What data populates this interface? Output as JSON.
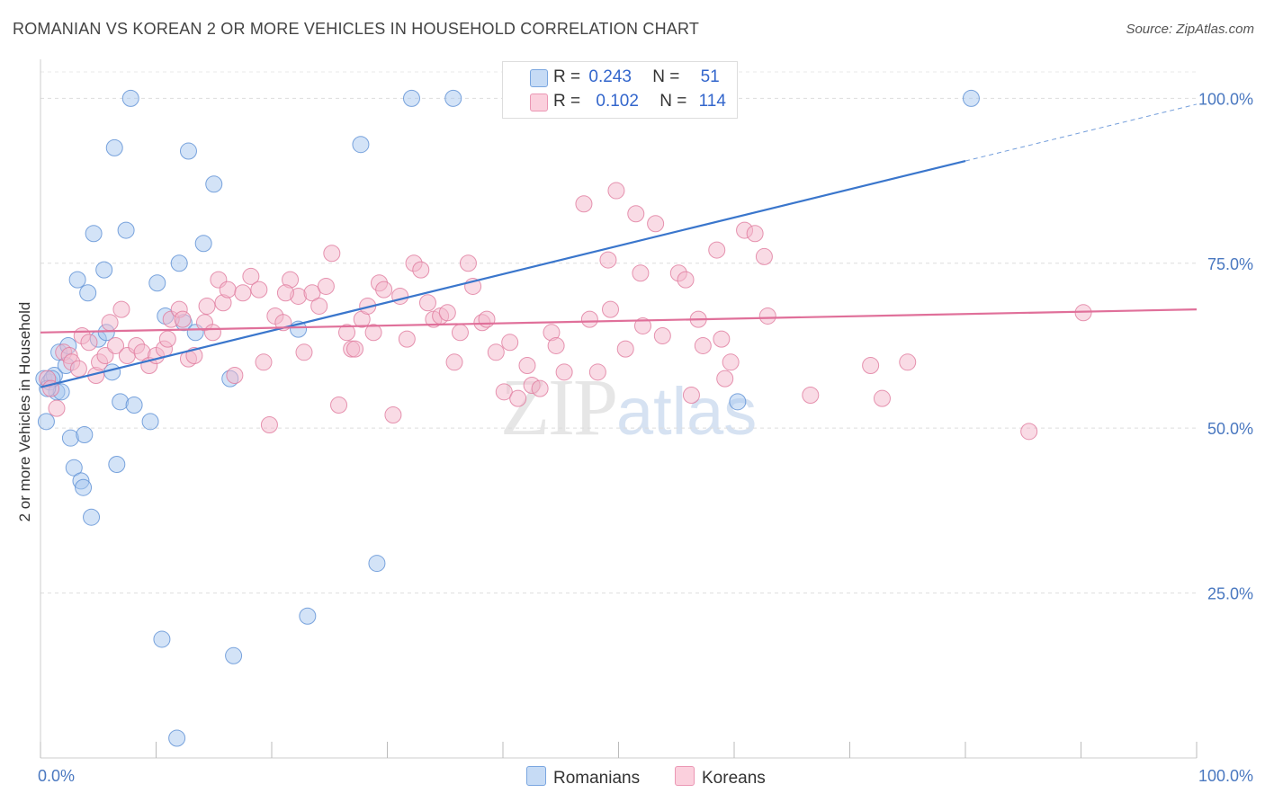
{
  "title": "ROMANIAN VS KOREAN 2 OR MORE VEHICLES IN HOUSEHOLD CORRELATION CHART",
  "source": "Source: ZipAtlas.com",
  "watermark": {
    "zip": "ZIP",
    "atlas": "atlas"
  },
  "legend": {
    "romanians": {
      "r_label": "R =",
      "r_value": "0.243",
      "n_label": "N =",
      "n_value": "51",
      "color": "#a8c8f0"
    },
    "koreans": {
      "r_label": "R =",
      "r_value": "0.102",
      "n_label": "N =",
      "n_value": "114",
      "color": "#f4b8cc"
    }
  },
  "bottom_legend": {
    "romanians": "Romanians",
    "koreans": "Koreans"
  },
  "chart_data": {
    "type": "scatter",
    "title": "ROMANIAN VS KOREAN 2 OR MORE VEHICLES IN HOUSEHOLD CORRELATION CHART",
    "xlabel": "",
    "ylabel": "2 or more Vehicles in Household",
    "xlim": [
      0,
      100
    ],
    "ylim": [
      0,
      104
    ],
    "x_tick_labels": [
      "0.0%",
      "100.0%"
    ],
    "y_ticks": [
      25,
      50,
      75,
      100
    ],
    "y_tick_labels": [
      "25.0%",
      "50.0%",
      "75.0%",
      "100.0%"
    ],
    "grid": true,
    "series": [
      {
        "name": "Romanians",
        "color": "#5b8fd4",
        "fill": "#a8c8f0",
        "trend": {
          "x0": 0,
          "y0": 56.2,
          "x1": 80,
          "y1": 90.5,
          "dashed_to_x": 100,
          "dashed_to_y": 99.1,
          "color": "#3a76cc"
        },
        "points": [
          [
            0.3,
            57.5
          ],
          [
            0.5,
            51
          ],
          [
            0.8,
            57
          ],
          [
            1.2,
            58
          ],
          [
            1.4,
            55.5
          ],
          [
            1.6,
            61.5
          ],
          [
            1.8,
            55.5
          ],
          [
            2.2,
            59.5
          ],
          [
            2.4,
            62.5
          ],
          [
            2.6,
            48.5
          ],
          [
            2.9,
            44
          ],
          [
            3.2,
            72.5
          ],
          [
            3.5,
            42
          ],
          [
            3.7,
            41
          ],
          [
            3.8,
            49
          ],
          [
            4.1,
            70.5
          ],
          [
            4.4,
            36.5
          ],
          [
            4.6,
            79.5
          ],
          [
            5.0,
            63.5
          ],
          [
            5.5,
            74
          ],
          [
            5.7,
            64.5
          ],
          [
            6.2,
            58.5
          ],
          [
            6.6,
            44.5
          ],
          [
            6.9,
            54
          ],
          [
            7.4,
            80
          ],
          [
            7.8,
            100
          ],
          [
            8.1,
            53.5
          ],
          [
            9.5,
            51
          ],
          [
            10.1,
            72
          ],
          [
            10.5,
            18
          ],
          [
            10.8,
            67
          ],
          [
            11.8,
            3
          ],
          [
            12.0,
            75
          ],
          [
            12.4,
            66
          ],
          [
            13.4,
            64.5
          ],
          [
            14.1,
            78
          ],
          [
            15.0,
            87
          ],
          [
            16.4,
            57.5
          ],
          [
            16.7,
            15.5
          ],
          [
            22.3,
            65
          ],
          [
            23.1,
            21.5
          ],
          [
            27.7,
            93
          ],
          [
            29.1,
            29.5
          ],
          [
            32.1,
            100
          ],
          [
            35.7,
            100
          ],
          [
            6.4,
            92.5
          ],
          [
            12.8,
            92
          ],
          [
            60.3,
            54
          ],
          [
            80.5,
            100
          ],
          [
            1.0,
            57.5
          ],
          [
            0.6,
            56
          ]
        ]
      },
      {
        "name": "Koreans",
        "color": "#e07a9e",
        "fill": "#f4b8cc",
        "trend": {
          "x0": 0,
          "y0": 64.5,
          "x1": 100,
          "y1": 68,
          "color": "#e0709a"
        },
        "points": [
          [
            0.6,
            57.5
          ],
          [
            0.9,
            56
          ],
          [
            1.4,
            53
          ],
          [
            2.0,
            61.5
          ],
          [
            2.5,
            61
          ],
          [
            2.7,
            60
          ],
          [
            3.3,
            59
          ],
          [
            3.6,
            64
          ],
          [
            4.2,
            63
          ],
          [
            4.8,
            58
          ],
          [
            5.1,
            60
          ],
          [
            5.6,
            61
          ],
          [
            6.0,
            66
          ],
          [
            6.5,
            62.5
          ],
          [
            7.0,
            68
          ],
          [
            7.5,
            61
          ],
          [
            8.3,
            62.5
          ],
          [
            8.8,
            61.5
          ],
          [
            9.4,
            59.5
          ],
          [
            10.0,
            61
          ],
          [
            10.7,
            62
          ],
          [
            11.0,
            63.5
          ],
          [
            11.3,
            66.5
          ],
          [
            12.0,
            68
          ],
          [
            12.3,
            66.5
          ],
          [
            12.8,
            60.5
          ],
          [
            13.3,
            61
          ],
          [
            14.2,
            66
          ],
          [
            14.4,
            68.5
          ],
          [
            14.9,
            64.5
          ],
          [
            15.4,
            72.5
          ],
          [
            15.8,
            69
          ],
          [
            16.2,
            71
          ],
          [
            16.8,
            58
          ],
          [
            17.5,
            70.5
          ],
          [
            18.2,
            73
          ],
          [
            18.9,
            71
          ],
          [
            19.3,
            60
          ],
          [
            19.8,
            50.5
          ],
          [
            20.3,
            67
          ],
          [
            21.0,
            66
          ],
          [
            21.6,
            72.5
          ],
          [
            22.3,
            70
          ],
          [
            22.8,
            61.5
          ],
          [
            23.5,
            70.5
          ],
          [
            24.1,
            68.5
          ],
          [
            24.7,
            71.5
          ],
          [
            25.2,
            76.5
          ],
          [
            25.8,
            53.5
          ],
          [
            26.5,
            64.5
          ],
          [
            26.9,
            62
          ],
          [
            27.2,
            62
          ],
          [
            27.8,
            66.5
          ],
          [
            28.3,
            68.5
          ],
          [
            28.8,
            64.5
          ],
          [
            29.3,
            72
          ],
          [
            29.7,
            71
          ],
          [
            30.5,
            52
          ],
          [
            31.1,
            70
          ],
          [
            31.7,
            63.5
          ],
          [
            32.3,
            75
          ],
          [
            32.9,
            74
          ],
          [
            33.5,
            69
          ],
          [
            34.0,
            66.5
          ],
          [
            34.6,
            67
          ],
          [
            35.2,
            67.5
          ],
          [
            35.8,
            60
          ],
          [
            36.3,
            64.5
          ],
          [
            37.0,
            75
          ],
          [
            37.4,
            71.5
          ],
          [
            38.2,
            66
          ],
          [
            38.6,
            66.5
          ],
          [
            39.4,
            61.5
          ],
          [
            40.1,
            55.5
          ],
          [
            40.6,
            63
          ],
          [
            41.3,
            54.5
          ],
          [
            42.1,
            59.5
          ],
          [
            42.5,
            56.5
          ],
          [
            43.2,
            56
          ],
          [
            44.2,
            64.5
          ],
          [
            44.6,
            62.5
          ],
          [
            45.3,
            58.5
          ],
          [
            47.0,
            84
          ],
          [
            47.5,
            66.5
          ],
          [
            48.2,
            58.5
          ],
          [
            49.1,
            75.5
          ],
          [
            49.3,
            68
          ],
          [
            49.8,
            86
          ],
          [
            50.6,
            62
          ],
          [
            51.5,
            82.5
          ],
          [
            51.9,
            73.5
          ],
          [
            52.1,
            65.5
          ],
          [
            53.2,
            81
          ],
          [
            53.8,
            64
          ],
          [
            55.2,
            73.5
          ],
          [
            55.8,
            72.5
          ],
          [
            56.3,
            55
          ],
          [
            56.9,
            66.5
          ],
          [
            57.3,
            62.5
          ],
          [
            58.5,
            77
          ],
          [
            58.9,
            63.5
          ],
          [
            59.2,
            57.5
          ],
          [
            59.7,
            60
          ],
          [
            60.9,
            80
          ],
          [
            61.8,
            79.5
          ],
          [
            62.6,
            76
          ],
          [
            62.9,
            67
          ],
          [
            66.6,
            55
          ],
          [
            71.8,
            59.5
          ],
          [
            72.8,
            54.5
          ],
          [
            75.0,
            60
          ],
          [
            85.5,
            49.5
          ],
          [
            90.2,
            67.5
          ],
          [
            21.2,
            70.5
          ]
        ]
      }
    ]
  }
}
